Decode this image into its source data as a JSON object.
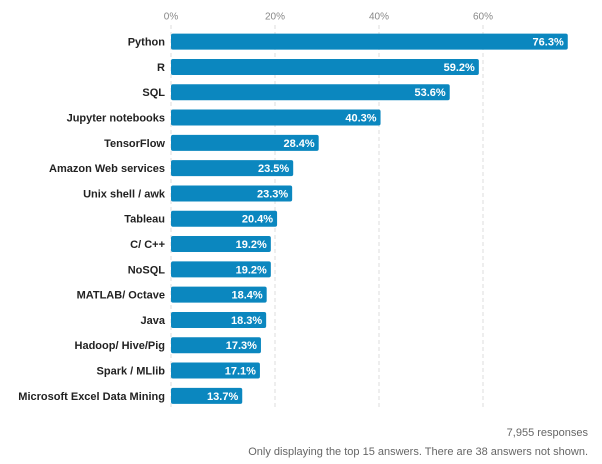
{
  "chart_data": {
    "type": "bar",
    "orientation": "horizontal",
    "categories": [
      "Python",
      "R",
      "SQL",
      "Jupyter notebooks",
      "TensorFlow",
      "Amazon Web services",
      "Unix shell / awk",
      "Tableau",
      "C/ C++",
      "NoSQL",
      "MATLAB/ Octave",
      "Java",
      "Hadoop/ Hive/Pig",
      "Spark / MLlib",
      "Microsoft Excel Data Mining"
    ],
    "values": [
      76.3,
      59.2,
      53.6,
      40.3,
      28.4,
      23.5,
      23.3,
      20.4,
      19.2,
      19.2,
      18.4,
      18.3,
      17.3,
      17.1,
      13.7
    ],
    "value_labels": [
      "76.3%",
      "59.2%",
      "53.6%",
      "40.3%",
      "28.4%",
      "23.5%",
      "23.3%",
      "20.4%",
      "19.2%",
      "19.2%",
      "18.4%",
      "18.3%",
      "17.3%",
      "17.1%",
      "13.7%"
    ],
    "color": "#0b87bf",
    "xlim": [
      0,
      80
    ],
    "xticks": [
      {
        "value": 0,
        "label": "0%"
      },
      {
        "value": 20,
        "label": "20%"
      },
      {
        "value": 40,
        "label": "40%"
      },
      {
        "value": 60,
        "label": "60%"
      }
    ],
    "grid": true,
    "annotations": [
      "7,955 responses",
      "Only displaying the top 15 answers. There are 38 answers not shown."
    ]
  }
}
